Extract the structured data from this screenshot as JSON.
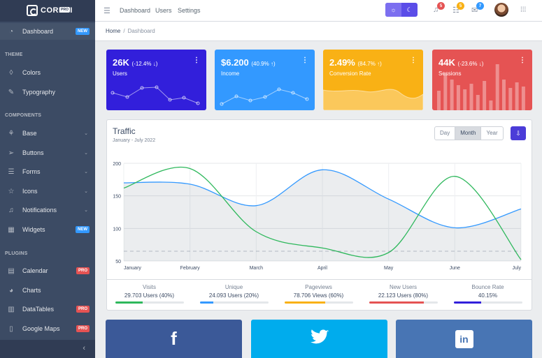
{
  "brand": {
    "text": "COREUI",
    "badge": "PRO"
  },
  "sidebar": {
    "dashboard": {
      "label": "Dashboard",
      "badge": "NEW"
    },
    "theme_title": "THEME",
    "colors": "Colors",
    "typography": "Typography",
    "components_title": "COMPONENTS",
    "base": "Base",
    "buttons": "Buttons",
    "forms": "Forms",
    "icons": "Icons",
    "notifications": "Notifications",
    "widgets": {
      "label": "Widgets",
      "badge": "NEW"
    },
    "plugins_title": "PLUGINS",
    "calendar": {
      "label": "Calendar",
      "badge": "PRO"
    },
    "charts": "Charts",
    "datatables": {
      "label": "DataTables",
      "badge": "PRO"
    },
    "googlemaps": {
      "label": "Google Maps",
      "badge": "PRO"
    }
  },
  "header": {
    "nav": [
      "Dashboard",
      "Users",
      "Settings"
    ],
    "notifications_count": "5",
    "tasks_count": "5",
    "messages_count": "7"
  },
  "breadcrumb": {
    "home": "Home",
    "current": "Dashboard"
  },
  "widgets": [
    {
      "value": "26K",
      "change": "(-12.4% ↓)",
      "label": "Users",
      "color": "#321fdb"
    },
    {
      "value": "$6.200",
      "change": "(40.9% ↑)",
      "label": "Income",
      "color": "#39f"
    },
    {
      "value": "2.49%",
      "change": "(84.7% ↑)",
      "label": "Conversion Rate",
      "color": "#f9b115"
    },
    {
      "value": "44K",
      "change": "(-23.6% ↓)",
      "label": "Sessions",
      "color": "#e55353"
    }
  ],
  "traffic": {
    "title": "Traffic",
    "subtitle": "January - July 2022",
    "buttons": [
      "Day",
      "Month",
      "Year"
    ],
    "active_button": "Month"
  },
  "chart_data": {
    "type": "line",
    "x": [
      "January",
      "February",
      "March",
      "April",
      "May",
      "June",
      "July"
    ],
    "yticks": [
      50,
      100,
      150,
      200
    ],
    "ylim": [
      50,
      200
    ],
    "series": [
      {
        "values": [
          170,
          168,
          135,
          190,
          145,
          101,
          130
        ],
        "color": "#39f",
        "fill": true
      },
      {
        "values": [
          162,
          192,
          95,
          70,
          63,
          180,
          52
        ],
        "color": "#2eb85c"
      },
      {
        "values": [
          65,
          65,
          65,
          65,
          65,
          65,
          65
        ],
        "color": "#e55353",
        "dashed": true
      }
    ]
  },
  "stats": [
    {
      "title": "Visits",
      "value": "29.703 Users (40%)",
      "percent": 40,
      "color": "#2eb85c"
    },
    {
      "title": "Unique",
      "value": "24.093 Users (20%)",
      "percent": 20,
      "color": "#39f"
    },
    {
      "title": "Pageviews",
      "value": "78.706 Views (60%)",
      "percent": 60,
      "color": "#f9b115"
    },
    {
      "title": "New Users",
      "value": "22.123 Users (80%)",
      "percent": 80,
      "color": "#e55353"
    },
    {
      "title": "Bounce Rate",
      "value": "40.15%",
      "percent": 40,
      "color": "#321fdb"
    }
  ],
  "social": [
    {
      "icon": "f",
      "color": "#3b5998"
    },
    {
      "icon": "𝕥",
      "color": "#00aced"
    },
    {
      "icon": "in",
      "color": "#4875b4"
    }
  ]
}
